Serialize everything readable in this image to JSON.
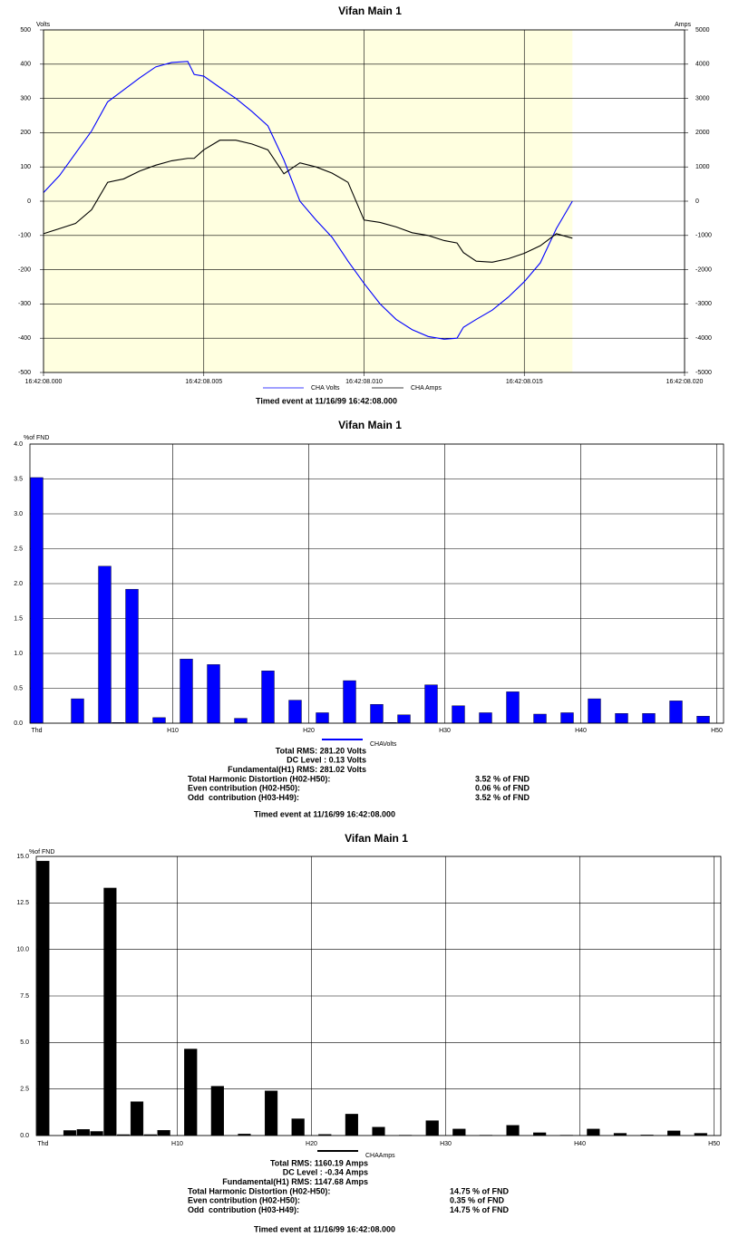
{
  "chart_data": [
    {
      "type": "line",
      "title": "Vifan Main 1",
      "ylabel": "Volts",
      "y2label": "Amps",
      "x": [
        0,
        0.5,
        1,
        1.5,
        2,
        2.5,
        3,
        3.5,
        4,
        4.5,
        4.7,
        5,
        5.5,
        6,
        6.5,
        7,
        7.5,
        8,
        8.5,
        9,
        9.5,
        10,
        10.5,
        11,
        11.5,
        12,
        12.5,
        12.9,
        13.1,
        13.5,
        14,
        14.5,
        15,
        15.5,
        16,
        16.5
      ],
      "series": [
        {
          "name": "CHA Volts",
          "color": "#0000ff",
          "values": [
            25,
            75,
            140,
            205,
            290,
            325,
            360,
            392,
            405,
            408,
            370,
            365,
            332,
            300,
            262,
            220,
            120,
            0,
            -55,
            -105,
            -175,
            -240,
            -300,
            -345,
            -375,
            -395,
            -403,
            -400,
            -368,
            -345,
            -318,
            -280,
            -235,
            -180,
            -80,
            0
          ]
        },
        {
          "name": "CHA Amps",
          "color": "#000000",
          "axis": "y2",
          "values": [
            -950,
            -800,
            -650,
            -250,
            550,
            650,
            880,
            1050,
            1180,
            1250,
            1250,
            1500,
            1780,
            1780,
            1670,
            1500,
            800,
            1120,
            1000,
            820,
            550,
            -550,
            -620,
            -750,
            -920,
            -1000,
            -1150,
            -1220,
            -1500,
            -1750,
            -1780,
            -1680,
            -1520,
            -1300,
            -950,
            -1080
          ]
        }
      ],
      "xlim": [
        0,
        20
      ],
      "xticks": [
        {
          "value": 0,
          "label": "16:42:08.000"
        },
        {
          "value": 5,
          "label": "16:42:08.005"
        },
        {
          "value": 10,
          "label": "16:42:08.010"
        },
        {
          "value": 15,
          "label": "16:42:08.015"
        },
        {
          "value": 20,
          "label": "16:42:08.020"
        }
      ],
      "ylim": [
        -500,
        500
      ],
      "yticks": [
        -500,
        -400,
        -300,
        -200,
        -100,
        0,
        100,
        200,
        300,
        400,
        500
      ],
      "y2lim": [
        -5000,
        5000
      ],
      "y2ticks": [
        -5000,
        -4000,
        -3000,
        -2000,
        -1000,
        0,
        1000,
        2000,
        3000,
        4000,
        5000
      ],
      "grid": true,
      "footnote": "Timed event at 11/16/99 16:42:08.000"
    },
    {
      "type": "bar",
      "title": "Vifan Main 1",
      "ylabel": "%of FND",
      "categories": [
        "Thd",
        null,
        null,
        null,
        null,
        null,
        null,
        null,
        null,
        null,
        "H10",
        null,
        null,
        null,
        null,
        null,
        null,
        null,
        null,
        null,
        "H20",
        null,
        null,
        null,
        null,
        null,
        null,
        null,
        null,
        null,
        "H30",
        null,
        null,
        null,
        null,
        null,
        null,
        null,
        null,
        null,
        "H40",
        null,
        null,
        null,
        null,
        null,
        null,
        null,
        null,
        null,
        "H50"
      ],
      "series": [
        {
          "name": "CHAVolts",
          "color": "#0000ff",
          "values": [
            3.52,
            null,
            0,
            0.35,
            0,
            2.25,
            0.01,
            1.92,
            0,
            0.08,
            0,
            0.92,
            0,
            0.84,
            0,
            0.07,
            0,
            0.75,
            0,
            0.33,
            0,
            0.15,
            0,
            0.61,
            0,
            0.27,
            0.01,
            0.12,
            0,
            0.55,
            0,
            0.25,
            0,
            0.15,
            0,
            0.45,
            0,
            0.13,
            0,
            0.15,
            0,
            0.35,
            0,
            0.14,
            0,
            0.14,
            0,
            0.32,
            0,
            0.1,
            0
          ]
        }
      ],
      "ylim": [
        0,
        4
      ],
      "yticks": [
        {
          "value": 0,
          "label": "0.0"
        },
        0.5,
        {
          "value": 1,
          "label": "1.0"
        },
        1.5,
        {
          "value": 2,
          "label": "2.0"
        },
        2.5,
        {
          "value": 3,
          "label": "3.0"
        },
        3.5,
        {
          "value": 4,
          "label": "4.0"
        }
      ],
      "grid": true,
      "summary": [
        "Total RMS: 281.20 Volts",
        "DC Level : 0.13 Volts",
        "Fundamental(H1) RMS: 281.02 Volts"
      ],
      "distortion": [
        [
          "Total Harmonic Distortion (H02-H50):",
          "3.52 % of FND"
        ],
        [
          "Even contribution (H02-H50):",
          "0.06 % of FND"
        ],
        [
          "Odd  contribution (H03-H49):",
          "3.52 % of FND"
        ]
      ],
      "footnote": "Timed event at 11/16/99 16:42:08.000"
    },
    {
      "type": "bar",
      "title": "Vifan Main 1",
      "ylabel": "%of FND",
      "categories": [
        "Thd",
        null,
        null,
        null,
        null,
        null,
        null,
        null,
        null,
        null,
        "H10",
        null,
        null,
        null,
        null,
        null,
        null,
        null,
        null,
        null,
        "H20",
        null,
        null,
        null,
        null,
        null,
        null,
        null,
        null,
        null,
        "H30",
        null,
        null,
        null,
        null,
        null,
        null,
        null,
        null,
        null,
        "H40",
        null,
        null,
        null,
        null,
        null,
        null,
        null,
        null,
        null,
        "H50"
      ],
      "series": [
        {
          "name": "CHAAmps",
          "color": "#000000",
          "values": [
            14.75,
            null,
            0.27,
            0.33,
            0.22,
            13.3,
            0.05,
            1.82,
            0.05,
            0.28,
            0,
            4.65,
            0,
            2.65,
            0,
            0.08,
            0,
            2.4,
            0,
            0.9,
            0,
            0.06,
            0,
            1.15,
            0,
            0.45,
            0,
            0.02,
            0,
            0.8,
            0,
            0.35,
            0,
            0.02,
            0,
            0.55,
            0,
            0.15,
            0,
            0.02,
            0,
            0.35,
            0,
            0.12,
            0,
            0.03,
            0,
            0.25,
            0,
            0.12,
            0
          ]
        }
      ],
      "ylim": [
        0,
        15
      ],
      "yticks": [
        {
          "value": 0,
          "label": "0.0"
        },
        2.5,
        {
          "value": 5,
          "label": "5.0"
        },
        7.5,
        {
          "value": 10,
          "label": "10.0"
        },
        12.5,
        {
          "value": 15,
          "label": "15.0"
        }
      ],
      "grid": true,
      "summary": [
        "Total RMS: 1160.19 Amps",
        "DC Level : -0.34 Amps",
        "Fundamental(H1) RMS: 1147.68 Amps"
      ],
      "distortion": [
        [
          "Total Harmonic Distortion (H02-H50):",
          "14.75 % of FND"
        ],
        [
          "Even contribution (H02-H50):",
          "0.35 % of FND"
        ],
        [
          "Odd  contribution (H03-H49):",
          "14.75 % of FND"
        ]
      ],
      "footnote": "Timed event at 11/16/99 16:42:08.000"
    }
  ]
}
